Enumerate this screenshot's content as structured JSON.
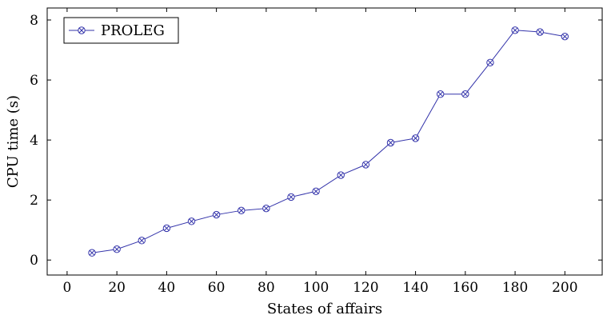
{
  "chart_data": {
    "type": "line",
    "title": "",
    "xlabel": "States of affairs",
    "ylabel": "CPU time (s)",
    "xlim": [
      -8,
      215
    ],
    "ylim": [
      -0.5,
      8.4
    ],
    "xticks": [
      0,
      20,
      40,
      60,
      80,
      100,
      120,
      140,
      160,
      180,
      200
    ],
    "yticks": [
      0,
      2,
      4,
      6,
      8
    ],
    "grid": false,
    "legend_position": "top-left",
    "x": [
      10,
      20,
      30,
      40,
      50,
      60,
      70,
      80,
      90,
      100,
      110,
      120,
      130,
      140,
      150,
      160,
      170,
      180,
      190,
      200
    ],
    "series": [
      {
        "name": "PROLEG",
        "color": "#3333aa",
        "marker": "circle-cross",
        "values": [
          0.24,
          0.36,
          0.65,
          1.06,
          1.29,
          1.51,
          1.65,
          1.72,
          2.1,
          2.29,
          2.83,
          3.18,
          3.91,
          4.06,
          5.53,
          5.53,
          6.58,
          7.66,
          7.6,
          7.45
        ]
      }
    ]
  }
}
